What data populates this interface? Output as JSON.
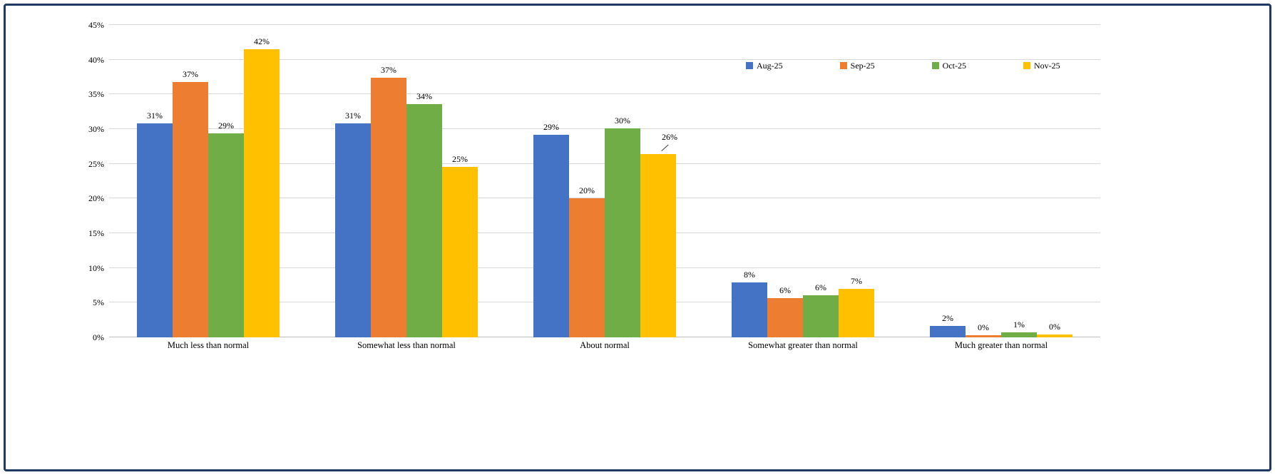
{
  "frame": {
    "border_color": "#1F3864",
    "background": "#FFFFFF"
  },
  "chart_data": {
    "type": "bar",
    "title": "",
    "xlabel": "",
    "ylabel": "",
    "grid": true,
    "categories": [
      "Much less than normal",
      "Somewhat less than normal",
      "About normal",
      "Somewhat greater than normal",
      "Much greater than normal"
    ],
    "series": [
      {
        "name": "Aug-25",
        "color": "#4472C4",
        "values": [
          30.8,
          30.8,
          29.2,
          7.9,
          1.6
        ],
        "data_labels": [
          "31%",
          "31%",
          "29%",
          "8%",
          "2%"
        ]
      },
      {
        "name": "Sep-25",
        "color": "#ED7D31",
        "values": [
          36.8,
          37.4,
          20.0,
          5.7,
          0.3
        ],
        "data_labels": [
          "37%",
          "37%",
          "20%",
          "6%",
          "0%"
        ]
      },
      {
        "name": "Oct-25",
        "color": "#70AD47",
        "values": [
          29.4,
          33.6,
          30.1,
          6.1,
          0.7
        ],
        "data_labels": [
          "29%",
          "34%",
          "30%",
          "6%",
          "1%"
        ]
      },
      {
        "name": "Nov-25",
        "color": "#FFC000",
        "values": [
          41.5,
          24.6,
          26.4,
          7.0,
          0.4
        ],
        "data_labels": [
          "42%",
          "25%",
          "26%",
          "7%",
          "0%"
        ]
      }
    ],
    "y_axis": {
      "min": 0,
      "max": 45,
      "step": 5,
      "tick_labels": [
        "0%",
        "5%",
        "10%",
        "15%",
        "20%",
        "25%",
        "30%",
        "35%",
        "40%",
        "45%"
      ]
    },
    "legend": {
      "position": "top-right",
      "entries": [
        "Aug-25",
        "Sep-25",
        "Oct-25",
        "Nov-25"
      ]
    },
    "label_callouts": [
      {
        "category_index": 2,
        "series_index": 3
      }
    ]
  }
}
